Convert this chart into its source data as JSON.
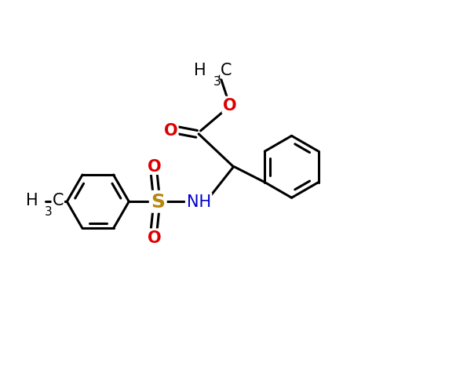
{
  "bg_color": "#ffffff",
  "bond_color": "#000000",
  "bond_width": 2.2,
  "atom_colors": {
    "O": "#dd0000",
    "N": "#0000cc",
    "S": "#b8860b",
    "C": "#000000",
    "H": "#000000"
  },
  "font_size_atom": 15,
  "font_size_sub": 10,
  "figsize": [
    5.95,
    4.77
  ],
  "dpi": 100
}
